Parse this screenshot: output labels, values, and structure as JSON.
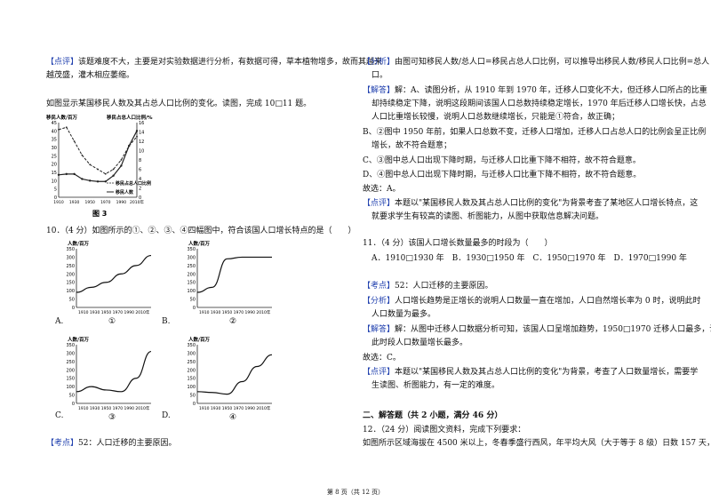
{
  "left": {
    "review1_tag": "【点评】",
    "review1_l1": "该题难度不大，主要是对实验数据进行分析，有数据可得，草本植物增多，故而其越来",
    "review1_l2": "越茂盛，灌木相应萎缩。",
    "intro": "如图显示某国移民人数及其占总人口比例的变化。读图，完成 10□11 题。",
    "fig3": {
      "ylabel_left": "移民人数/百万",
      "ylabel_right": "移民占总人口比例/%",
      "left_ticks": [
        "45",
        "40",
        "35",
        "30",
        "25",
        "20",
        "15",
        "10",
        "5",
        "0"
      ],
      "right_ticks": [
        "16",
        "14",
        "12",
        "10",
        "8",
        "6",
        "4",
        "2",
        "0"
      ],
      "x_ticks": [
        "1910",
        "1930",
        "1950",
        "1970",
        "1990",
        "2010年"
      ],
      "legend_ratio": "移民占总人口比例",
      "legend_count": "移民人数",
      "caption": "图 3"
    },
    "q10": "10．（4 分）如图所示的①、②、③、④四幅图中，符合该国人口增长特点的是（　　）",
    "mini": {
      "ylabel": "人数/百万",
      "y_ticks": [
        "350",
        "300",
        "250",
        "200",
        "150",
        "100",
        "50",
        "0"
      ],
      "x_ticks": "1910 1930 1950 1970 1990 2010年",
      "nums": [
        "①",
        "②",
        "③",
        "④"
      ]
    },
    "opt_a": "A.",
    "opt_b": "B.",
    "opt_c": "C.",
    "opt_d": "D.",
    "kaodian_tag": "【考点】",
    "kaodian_text": "52：人口迁移的主要原因。"
  },
  "right": {
    "fenxi_tag": "【分析】",
    "fenxi_l1": "由图可知移民人数/总人口=移民占总人口比例，可以推导出移民人数/移民人口比例=总人",
    "fenxi_l2": "口。",
    "jieda_tag": "【解答】",
    "jieda_l1": "解：A、读图分析，从 1910 年到 1970 年，迁移人口变化不大，但迁移人口所占的比重",
    "jieda_l2": "却持续稳定下降，说明这段期间该国人口总数持续稳定增长，1970 年后迁移人口增长快，占总",
    "jieda_l3": "人口比重增长较慢，说明人口总数继续增长，只能是①符合，故正确；",
    "b_l1": "B、②图中 1950 年前，如果人口总数不变，迁移人口增加，迁移人口占总人口的比例会呈正比例",
    "b_l2": "增长，故不符合题意；",
    "c_line": "C、③图中总人口出现下降时期，与迁移人口比重下降不相符，故不符合题意。",
    "d_line": "D、④图中总人口出现下降时期，与迁移人口比重下降不相符，故不符合题意。",
    "ans1": "故选：A。",
    "dianping1_tag": "【点评】",
    "dianping1_l1": "本题以\"某国移民人数及其占总人口比例的变化\"为背景考查了某地区人口增长特点，这",
    "dianping1_l2": "就要求学生有较高的读图、析图能力，从图中获取信息解决问题。",
    "q11": "11．（4 分）该国人口增长数量最多的时段为（　　）",
    "q11_opts": "A．1910□1930 年　B．1930□1950 年　C．1950□1970 年　D．1970□1990 年",
    "kaodian2_tag": "【考点】",
    "kaodian2_text": "52：人口迁移的主要原因。",
    "fenxi2_tag": "【分析】",
    "fenxi2_l1": "人口增长趋势是正增长的说明人口数量一直在增加，人口自然增长率为 0 时，说明此时",
    "fenxi2_l2": "人口数量为最多。",
    "jieda2_tag": "【解答】",
    "jieda2_l1": "解：从图中迁移人口数据分析可知，该国人口呈增加趋势，1950□1970 迁移人口最多，说明",
    "jieda2_l2": "此时段人口数量增长最多。",
    "ans2": "故选：C。",
    "dianping2_tag": "【点评】",
    "dianping2_l1": "本题以\"某国移民人数及其占总人口比例的变化\"为背景，考查了人口数量增长，需要学",
    "dianping2_l2": "生读图、析图能力，有一定的难度。",
    "section": "二、解答题（共 2 小题，满分 46 分）",
    "q12": "12．（24 分）阅读图文资料，完成下列要求：",
    "q12_l1": "如图所示区域海拔在 4500 米以上，冬春季盛行西风，年平均大风（大于等于 8 级）日数 157 天，"
  },
  "footer": "第 8 页（共 12 页）",
  "chart_data": [
    {
      "type": "line",
      "title": "图 3",
      "x": [
        1910,
        1920,
        1930,
        1940,
        1950,
        1960,
        1970,
        1980,
        1990,
        2000,
        2010
      ],
      "series": [
        {
          "name": "移民人数",
          "axis": "left",
          "values": [
            13.5,
            14,
            14,
            11,
            10,
            9.5,
            9.5,
            13,
            19,
            31,
            40
          ]
        },
        {
          "name": "移民占总人口比例",
          "axis": "right",
          "values": [
            14.5,
            15,
            12,
            9,
            7,
            6,
            5,
            6,
            8,
            11,
            13
          ]
        }
      ],
      "xlabel": "",
      "ylabel": "移民人数/百万",
      "ylabel_right": "移民占总人口比例/%",
      "ylim": [
        0,
        45
      ],
      "ylim_right": [
        0,
        16
      ]
    },
    {
      "type": "line",
      "title": "①",
      "x": [
        1910,
        1930,
        1950,
        1970,
        1990,
        2010
      ],
      "values": [
        90,
        120,
        150,
        200,
        250,
        310
      ],
      "ylim": [
        0,
        350
      ]
    },
    {
      "type": "line",
      "title": "②",
      "x": [
        1910,
        1930,
        1950,
        1970,
        1990,
        2010
      ],
      "values": [
        90,
        120,
        290,
        300,
        300,
        300
      ],
      "ylim": [
        0,
        350
      ]
    },
    {
      "type": "line",
      "title": "③",
      "x": [
        1910,
        1930,
        1950,
        1970,
        1990,
        2010
      ],
      "values": [
        70,
        100,
        80,
        70,
        150,
        310
      ],
      "ylim": [
        0,
        350
      ]
    },
    {
      "type": "line",
      "title": "④",
      "x": [
        1910,
        1930,
        1950,
        1970,
        1990,
        2010
      ],
      "values": [
        70,
        65,
        55,
        130,
        220,
        290
      ],
      "ylim": [
        0,
        350
      ]
    }
  ]
}
